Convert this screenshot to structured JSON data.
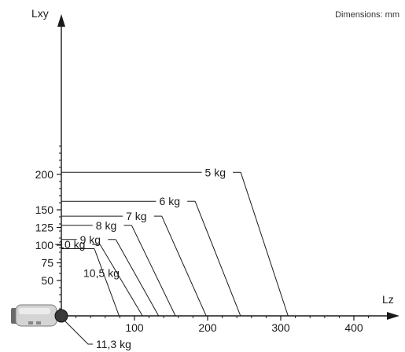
{
  "chart_data": {
    "type": "line",
    "title": "",
    "units_note": "Dimensions: mm",
    "xlabel": "Lz",
    "ylabel": "Lxy",
    "xlim": [
      0,
      430
    ],
    "ylim": [
      0,
      240
    ],
    "x_ticks": [
      100,
      200,
      300,
      400
    ],
    "y_ticks": [
      50,
      75,
      100,
      125,
      150,
      200
    ],
    "grid": false,
    "series": [
      {
        "name": "5 kg",
        "label": "5 kg",
        "lxy": 203,
        "lz": 310
      },
      {
        "name": "6 kg",
        "label": "6 kg",
        "lxy": 162,
        "lz": 245
      },
      {
        "name": "7 kg",
        "label": "7 kg",
        "lxy": 141,
        "lz": 198
      },
      {
        "name": "8 kg",
        "label": "8 kg",
        "lxy": 128,
        "lz": 156
      },
      {
        "name": "9 kg",
        "label": "9 kg",
        "lxy": 108,
        "lz": 133
      },
      {
        "name": "10 kg",
        "label": "10 kg",
        "lxy": 101,
        "lz": 111
      },
      {
        "name": "10,5 kg",
        "label": "10,5 kg",
        "lxy": 95,
        "lz": 79
      },
      {
        "name": "11,3 kg",
        "label": "11,3 kg",
        "lxy": 0,
        "lz": 0
      }
    ],
    "colors": {
      "axis": "#1a1a1a",
      "line": "#1a1a1a",
      "device_body": "#c8c8c8",
      "device_dark": "#404040"
    },
    "icons": {
      "device": "actuator-device-icon",
      "origin": "origin-dot-icon"
    }
  }
}
